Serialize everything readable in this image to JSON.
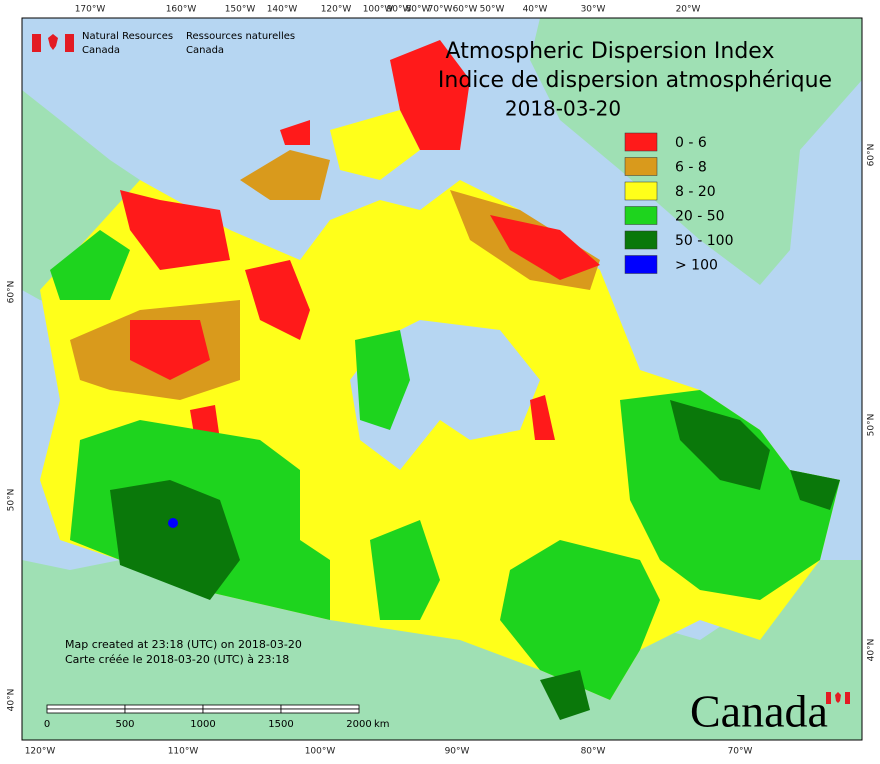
{
  "logo": {
    "en": [
      "Natural Resources",
      "Canada"
    ],
    "fr": [
      "Ressources naturelles",
      "Canada"
    ]
  },
  "title": {
    "en": "Atmospheric Dispersion Index",
    "fr": "Indice de dispersion atmosphérique",
    "date": "2018-03-20"
  },
  "legend": [
    {
      "label": "0 - 6",
      "color": "#ff1a1a"
    },
    {
      "label": "6 - 8",
      "color": "#d99a1c"
    },
    {
      "label": "8 - 20",
      "color": "#ffff1a"
    },
    {
      "label": "20 - 50",
      "color": "#1ed41e"
    },
    {
      "label": "50 - 100",
      "color": "#0a780a"
    },
    {
      "label": "> 100",
      "color": "#0000ff"
    }
  ],
  "top_labels": [
    "170°W",
    "160°W",
    "150°W",
    "140°W",
    "120°W",
    "100°W",
    "90°W",
    "80°W",
    "70°W",
    "60°W",
    "50°W",
    "40°W",
    "30°W",
    "20°W"
  ],
  "bottom_labels": [
    "120°W",
    "110°W",
    "100°W",
    "90°W",
    "80°W",
    "70°W"
  ],
  "left_labels": [
    "60°N",
    "50°N",
    "40°N"
  ],
  "right_labels": [
    "60°N",
    "50°N",
    "40°N"
  ],
  "footer": [
    "Map created at 23:18 (UTC) on 2018-03-20",
    "Carte créée le 2018-03-20 (UTC) à 23:18"
  ],
  "scale": {
    "ticks": [
      "0",
      "500",
      "1000",
      "1500",
      "2000"
    ],
    "unit": "km"
  },
  "wordmark": "Canada"
}
